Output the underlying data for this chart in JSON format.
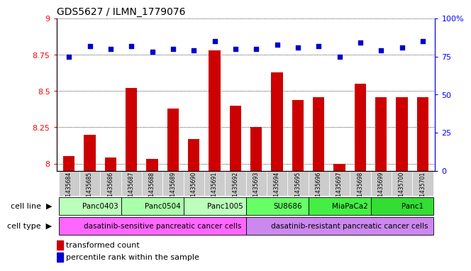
{
  "title": "GDS5627 / ILMN_1779076",
  "samples": [
    "GSM1435684",
    "GSM1435685",
    "GSM1435686",
    "GSM1435687",
    "GSM1435688",
    "GSM1435689",
    "GSM1435690",
    "GSM1435691",
    "GSM1435692",
    "GSM1435693",
    "GSM1435694",
    "GSM1435695",
    "GSM1435696",
    "GSM1435697",
    "GSM1435698",
    "GSM1435699",
    "GSM1435700",
    "GSM1435701"
  ],
  "transformed_counts": [
    8.05,
    8.2,
    8.04,
    8.52,
    8.03,
    8.38,
    8.17,
    8.78,
    8.4,
    8.25,
    8.63,
    8.44,
    8.46,
    8.0,
    8.55,
    8.46,
    8.46,
    8.46
  ],
  "percentile_ranks": [
    75,
    82,
    80,
    82,
    78,
    80,
    79,
    85,
    80,
    80,
    83,
    81,
    82,
    75,
    84,
    79,
    81,
    85
  ],
  "ylim_left": [
    7.95,
    9.0
  ],
  "ylim_right": [
    0,
    100
  ],
  "yticks_left": [
    8.0,
    8.25,
    8.5,
    8.75,
    9.0
  ],
  "yticks_right": [
    0,
    25,
    50,
    75,
    100
  ],
  "bar_color": "#cc0000",
  "dot_color": "#0000cc",
  "cell_lines": [
    {
      "name": "Panc0403",
      "start": 0,
      "end": 3,
      "color": "#bbffbb"
    },
    {
      "name": "Panc0504",
      "start": 3,
      "end": 6,
      "color": "#aaffaa"
    },
    {
      "name": "Panc1005",
      "start": 6,
      "end": 9,
      "color": "#bbffbb"
    },
    {
      "name": "SU8686",
      "start": 9,
      "end": 12,
      "color": "#66ff66"
    },
    {
      "name": "MiaPaCa2",
      "start": 12,
      "end": 15,
      "color": "#44ee44"
    },
    {
      "name": "Panc1",
      "start": 15,
      "end": 18,
      "color": "#33dd33"
    }
  ],
  "cell_types": [
    {
      "name": "dasatinib-sensitive pancreatic cancer cells",
      "start": 0,
      "end": 9,
      "color": "#ff66ff"
    },
    {
      "name": "dasatinib-resistant pancreatic cancer cells",
      "start": 9,
      "end": 18,
      "color": "#cc88ee"
    }
  ],
  "legend_bar_label": "transformed count",
  "legend_dot_label": "percentile rank within the sample",
  "sample_bg_color": "#cccccc",
  "left_label_color": "#555555"
}
